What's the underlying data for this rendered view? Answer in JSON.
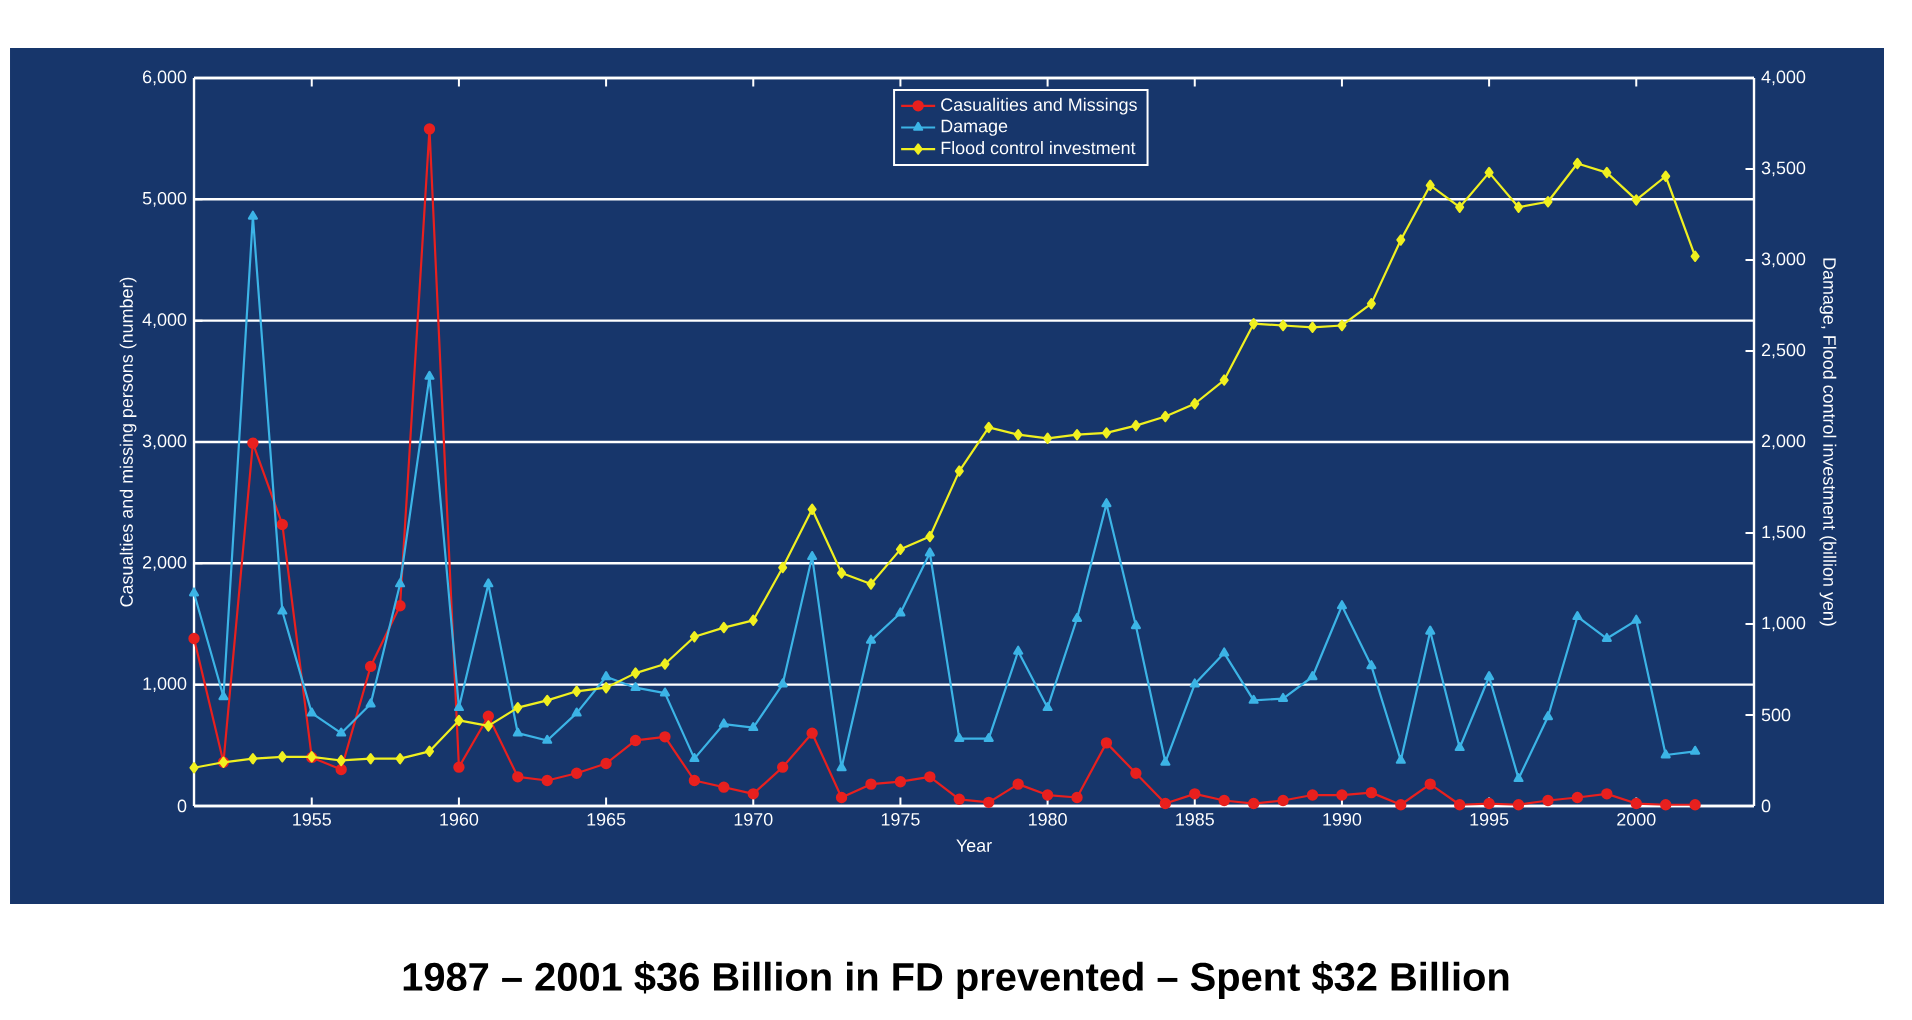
{
  "chart_data": {
    "type": "line",
    "xlabel": "Year",
    "ylabel": "Casualties and missing persons (number)",
    "y2label": "Damage, Flood control investment (billion yen)",
    "x": [
      1951,
      1952,
      1953,
      1954,
      1955,
      1956,
      1957,
      1958,
      1959,
      1960,
      1961,
      1962,
      1963,
      1964,
      1965,
      1966,
      1967,
      1968,
      1969,
      1970,
      1971,
      1972,
      1973,
      1974,
      1975,
      1976,
      1977,
      1978,
      1979,
      1980,
      1981,
      1982,
      1983,
      1984,
      1985,
      1986,
      1987,
      1988,
      1989,
      1990,
      1991,
      1992,
      1993,
      1994,
      1995,
      1996,
      1997,
      1998,
      1999,
      2000,
      2001,
      2002
    ],
    "series": [
      {
        "name": "Casualities and Missings",
        "color": "#e8201e",
        "marker": "circle",
        "values": [
          1380,
          360,
          2990,
          2320,
          400,
          300,
          1150,
          1650,
          5580,
          320,
          740,
          240,
          210,
          270,
          350,
          540,
          570,
          210,
          155,
          100,
          320,
          600,
          70,
          180,
          200,
          240,
          55,
          30,
          180,
          90,
          70,
          520,
          270,
          20,
          100,
          45,
          20,
          45,
          90,
          90,
          110,
          10,
          180,
          10,
          20,
          10,
          45,
          70,
          100,
          20,
          10,
          10
        ]
      },
      {
        "name": "Damage",
        "color": "#3cb4e6",
        "marker": "triangle",
        "axis": "y2",
        "values": [
          1170,
          600,
          3240,
          1070,
          510,
          400,
          560,
          1220,
          2360,
          540,
          1220,
          400,
          360,
          510,
          710,
          650,
          620,
          260,
          450,
          430,
          670,
          1370,
          210,
          910,
          1060,
          1390,
          370,
          370,
          850,
          540,
          1030,
          1660,
          990,
          240,
          670,
          840,
          580,
          590,
          710,
          1100,
          770,
          250,
          960,
          320,
          710,
          150,
          490,
          1040,
          920,
          1020,
          280,
          300
        ]
      },
      {
        "name": "Flood control investment",
        "color": "#f0f020",
        "marker": "diamond",
        "axis": "y2",
        "values": [
          210,
          240,
          260,
          270,
          270,
          250,
          260,
          260,
          300,
          470,
          440,
          540,
          580,
          630,
          650,
          730,
          780,
          930,
          980,
          1020,
          1310,
          1630,
          1280,
          1220,
          1410,
          1480,
          1840,
          2080,
          2040,
          2020,
          2040,
          2050,
          2090,
          2140,
          2210,
          2340,
          2650,
          2640,
          2630,
          2640,
          2760,
          3110,
          3410,
          3290,
          3480,
          3290,
          3320,
          3530,
          3480,
          3330,
          3460,
          3020
        ]
      }
    ],
    "xlim": [
      1951,
      2004
    ],
    "xticks": [
      1955,
      1960,
      1965,
      1970,
      1975,
      1980,
      1985,
      1990,
      1995,
      2000
    ],
    "ylim": [
      0,
      6000
    ],
    "yticks": [
      0,
      {
        "value": 1000,
        "label": "1,000"
      },
      {
        "value": 2000,
        "label": "2,000"
      },
      {
        "value": 3000,
        "label": "3,000"
      },
      {
        "value": 4000,
        "label": "4,000"
      },
      {
        "value": 5000,
        "label": "5,000"
      },
      {
        "value": 6000,
        "label": "6,000"
      }
    ],
    "y2lim": [
      0,
      4000
    ],
    "y2ticks": [
      0,
      500,
      {
        "value": 1000,
        "label": "1,000"
      },
      {
        "value": 1500,
        "label": "1,500"
      },
      {
        "value": 2000,
        "label": "2,000"
      },
      {
        "value": 2500,
        "label": "2,500"
      },
      {
        "value": 3000,
        "label": "3,000"
      },
      {
        "value": 3500,
        "label": "3,500"
      },
      {
        "value": 4000,
        "label": "4,000"
      }
    ],
    "grid": "y",
    "legend": "top",
    "annotations": [
      "1987 – 2001 $36 Billion in FD prevented – Spent $32 Billion"
    ]
  }
}
